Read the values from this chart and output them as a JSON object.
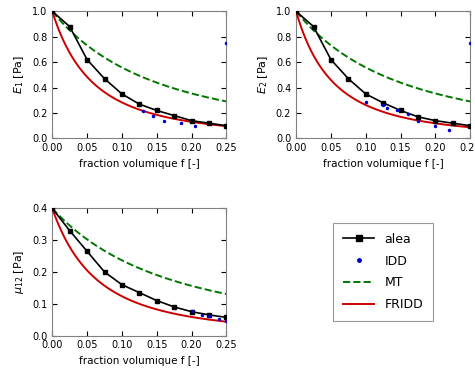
{
  "xlabel": "fraction volumique f [-]",
  "ylabel_E1": "$E_1$ [Pa]",
  "ylabel_E2": "$E_2$ [Pa]",
  "ylabel_mu12": "$\\mu_{12}$ [Pa]",
  "xlim": [
    0,
    0.25
  ],
  "ylim_E": [
    0,
    1.0
  ],
  "ylim_mu": [
    0,
    0.4
  ],
  "xticks": [
    0,
    0.05,
    0.1,
    0.15,
    0.2,
    0.25
  ],
  "colors": {
    "alea": "#000000",
    "IDD": "#0000cc",
    "MT": "#007700",
    "FRIDD": "#cc0000"
  },
  "bg_color": "#ffffff",
  "f_alea": [
    0.0,
    0.025,
    0.05,
    0.075,
    0.1,
    0.125,
    0.15,
    0.175,
    0.2,
    0.225,
    0.25
  ],
  "E1_alea": [
    1.0,
    0.88,
    0.62,
    0.47,
    0.35,
    0.27,
    0.22,
    0.18,
    0.14,
    0.12,
    0.1
  ],
  "E1_FRIDD_f": [
    0.0,
    0.25
  ],
  "E1_MT_f": [
    0.0,
    0.25
  ],
  "E2_alea": [
    1.0,
    0.88,
    0.62,
    0.47,
    0.35,
    0.28,
    0.22,
    0.17,
    0.14,
    0.12,
    0.1
  ],
  "mu12_alea": [
    0.4,
    0.33,
    0.265,
    0.2,
    0.16,
    0.135,
    0.11,
    0.09,
    0.075,
    0.065,
    0.057
  ],
  "E1_IDD_f": [
    0.125,
    0.14,
    0.155,
    0.17,
    0.185,
    0.2,
    0.225,
    0.25
  ],
  "E1_IDD_v": [
    0.26,
    0.21,
    0.175,
    0.155,
    0.13,
    0.115,
    0.08,
    0.75
  ],
  "E2_IDD_f": [
    0.1,
    0.12,
    0.13,
    0.145,
    0.16,
    0.175,
    0.2,
    0.22,
    0.25
  ],
  "E2_IDD_v": [
    0.3,
    0.28,
    0.25,
    0.22,
    0.19,
    0.15,
    0.12,
    0.08,
    0.75
  ],
  "mu12_IDD_f": [
    0.2,
    0.22,
    0.225,
    0.245,
    0.25
  ],
  "mu12_IDD_v": [
    0.077,
    0.065,
    0.06,
    0.05,
    0.048
  ]
}
